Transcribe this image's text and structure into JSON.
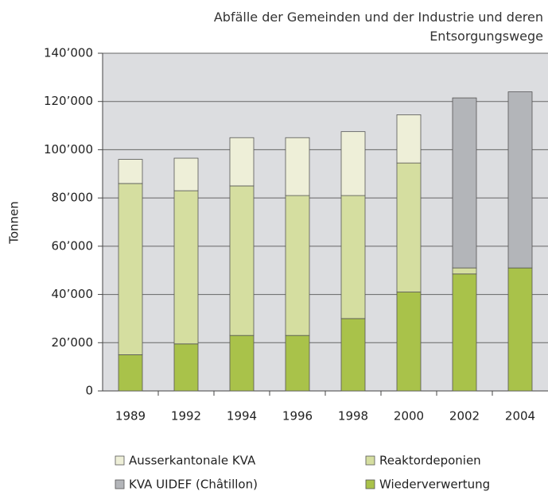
{
  "chart_data": {
    "type": "stacked-bar",
    "title": "Abfälle der Gemeinden und der Industrie und deren Entsorgungswege",
    "y_label": "Tonnen",
    "categories": [
      "1989",
      "1992",
      "1994",
      "1996",
      "1998",
      "2000",
      "2002",
      "2004"
    ],
    "series": [
      {
        "name": "Wiederverwertung",
        "color": "#a9c24a",
        "values": [
          15000,
          19500,
          23000,
          23000,
          30000,
          41000,
          48500,
          51000
        ]
      },
      {
        "name": "Reaktordeponien",
        "color": "#d5dea0",
        "values": [
          71000,
          63500,
          62000,
          58000,
          51000,
          53500,
          2500,
          0
        ]
      },
      {
        "name": "KVA UIDEF (Châtillon)",
        "color": "#b3b5b9",
        "values": [
          0,
          0,
          0,
          0,
          0,
          0,
          70500,
          73000
        ]
      },
      {
        "name": "Ausserkantonale KVA",
        "color": "#eeefd8",
        "values": [
          10000,
          13500,
          20000,
          24000,
          26500,
          20000,
          0,
          0
        ]
      }
    ],
    "ylim": [
      0,
      140000
    ],
    "yticks": [
      0,
      {
        "value": 20000,
        "label": "20’000"
      },
      {
        "value": 40000,
        "label": "40’000"
      },
      {
        "value": 60000,
        "label": "60’000"
      },
      {
        "value": 80000,
        "label": "80’000"
      },
      {
        "value": 100000,
        "label": "100’000"
      },
      {
        "value": 120000,
        "label": "120’000"
      },
      {
        "value": 140000,
        "label": "140’000"
      }
    ],
    "grid": true
  }
}
